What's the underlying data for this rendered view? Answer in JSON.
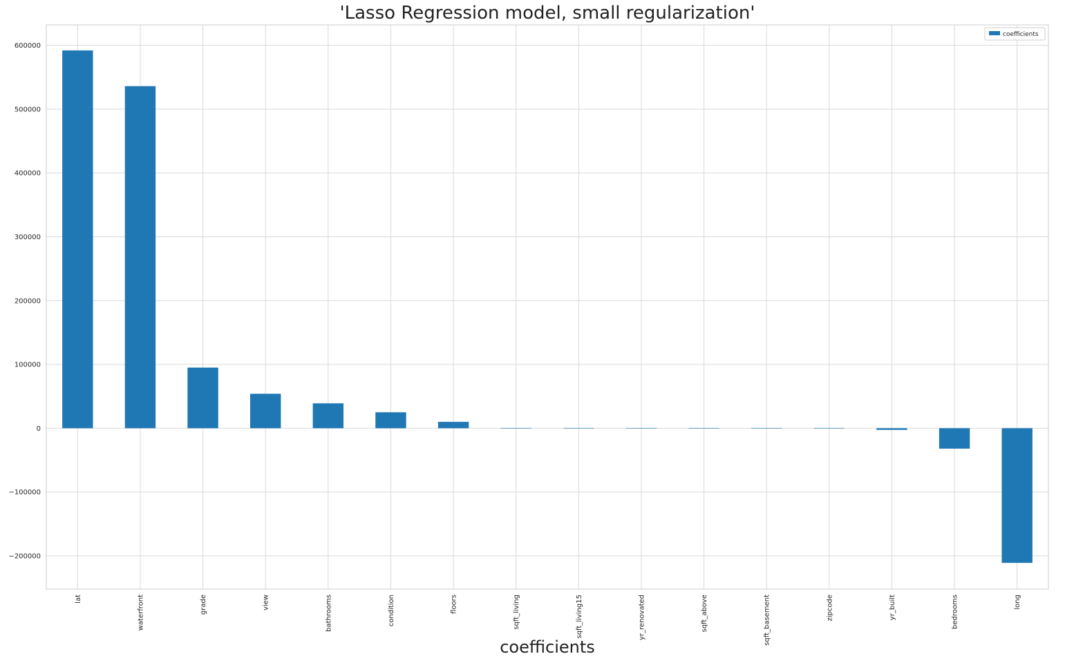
{
  "chart_data": {
    "type": "bar",
    "title": "'Lasso Regression model, small regularization'",
    "xlabel": "coefficients",
    "ylabel": "",
    "categories": [
      "lat",
      "waterfront",
      "grade",
      "view",
      "bathrooms",
      "condition",
      "floors",
      "sqft_living",
      "sqft_living15",
      "yr_renovated",
      "sqft_above",
      "sqft_basement",
      "zipcode",
      "yr_built",
      "bedrooms",
      "long"
    ],
    "series": [
      {
        "name": "coefficients",
        "values": [
          592000,
          536000,
          95000,
          54000,
          39000,
          25000,
          10000,
          150,
          60,
          40,
          20,
          -20,
          -600,
          -2600,
          -32000,
          -211000
        ]
      }
    ],
    "ylim": [
      -252000,
      632000
    ],
    "yticks": [
      600000,
      500000,
      400000,
      300000,
      200000,
      100000,
      0,
      -100000,
      -200000
    ],
    "ytick_labels": [
      "600000",
      "500000",
      "400000",
      "300000",
      "200000",
      "100000",
      "0",
      "−100000",
      "−200000"
    ],
    "grid": true,
    "legend_position": "upper right",
    "colors": {
      "bar": "#1f77b4",
      "grid": "#d9d9d9",
      "frame": "#cccccc",
      "text": "#262626"
    }
  }
}
